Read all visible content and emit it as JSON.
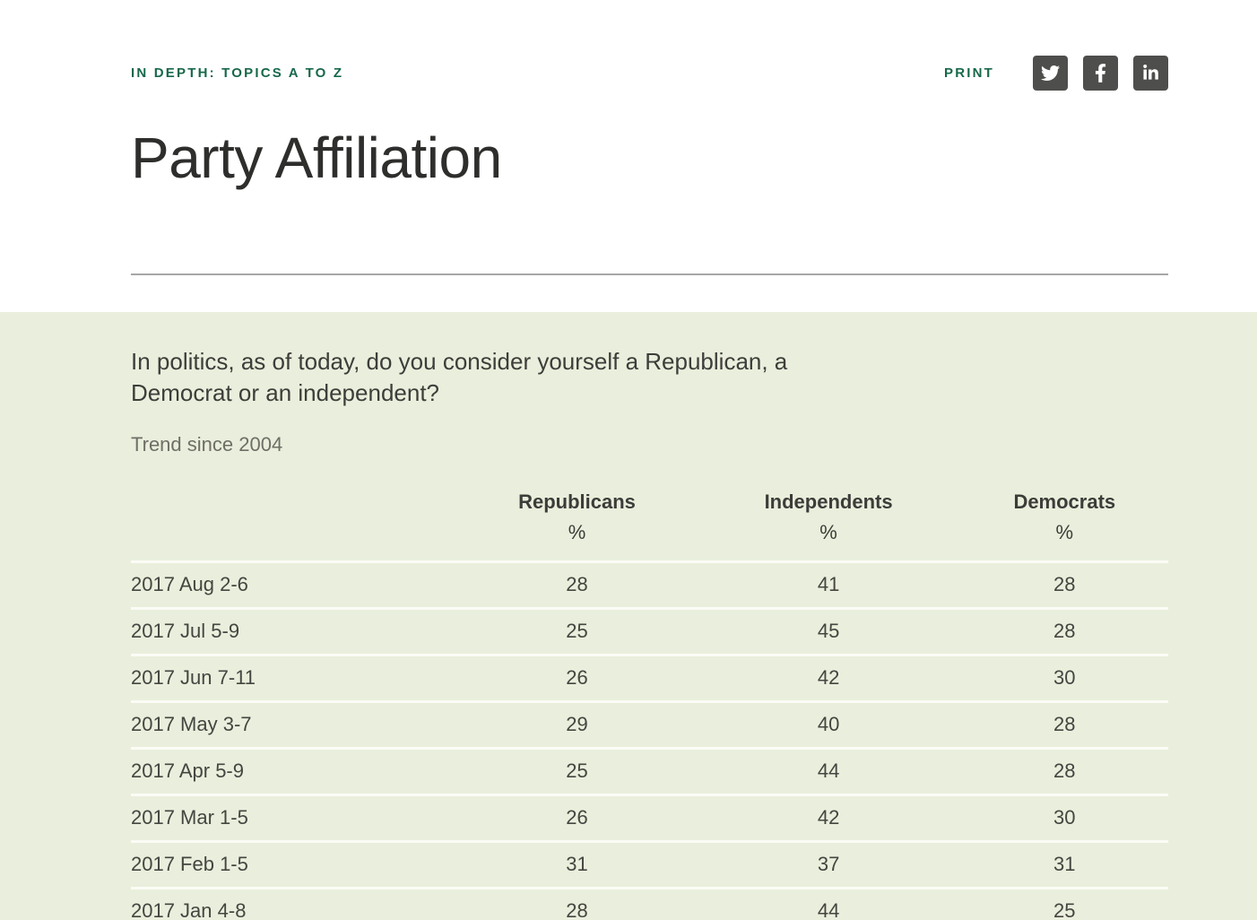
{
  "header": {
    "breadcrumb": "IN DEPTH: TOPICS A TO Z",
    "print_label": "PRINT",
    "title": "Party Affiliation",
    "social_icons": [
      "twitter-icon",
      "facebook-icon",
      "linkedin-icon"
    ]
  },
  "colors": {
    "accent_green": "#17684a",
    "section_background": "#e9efdc",
    "social_icon_background": "#4e4e4c",
    "title_text": "#2e2e2c",
    "body_text": "#3d3d3a",
    "muted_text": "#6e6e66",
    "divider_gray": "#a6a6a6"
  },
  "poll": {
    "question": "In politics, as of today, do you consider yourself a Republican, a Democrat or an independent?",
    "trend_label": "Trend since 2004",
    "table": {
      "columns": [
        "Republicans",
        "Independents",
        "Democrats"
      ],
      "unit": "%",
      "rows": [
        [
          "2017 Aug 2-6",
          "28",
          "41",
          "28"
        ],
        [
          "2017 Jul 5-9",
          "25",
          "45",
          "28"
        ],
        [
          "2017 Jun 7-11",
          "26",
          "42",
          "30"
        ],
        [
          "2017 May 3-7",
          "29",
          "40",
          "28"
        ],
        [
          "2017 Apr 5-9",
          "25",
          "44",
          "28"
        ],
        [
          "2017 Mar 1-5",
          "26",
          "42",
          "30"
        ],
        [
          "2017 Feb 1-5",
          "31",
          "37",
          "31"
        ],
        [
          "2017 Jan 4-8",
          "28",
          "44",
          "25"
        ]
      ]
    }
  },
  "chart_data": {
    "type": "table",
    "title": "Party Affiliation",
    "categories": [
      "2017 Aug 2-6",
      "2017 Jul 5-9",
      "2017 Jun 7-11",
      "2017 May 3-7",
      "2017 Apr 5-9",
      "2017 Mar 1-5",
      "2017 Feb 1-5",
      "2017 Jan 4-8"
    ],
    "series": [
      {
        "name": "Republicans",
        "values": [
          28,
          25,
          26,
          29,
          25,
          26,
          31,
          28
        ]
      },
      {
        "name": "Independents",
        "values": [
          41,
          45,
          42,
          40,
          44,
          42,
          37,
          44
        ]
      },
      {
        "name": "Democrats",
        "values": [
          28,
          28,
          30,
          28,
          28,
          30,
          31,
          25
        ]
      }
    ],
    "unit": "%"
  }
}
